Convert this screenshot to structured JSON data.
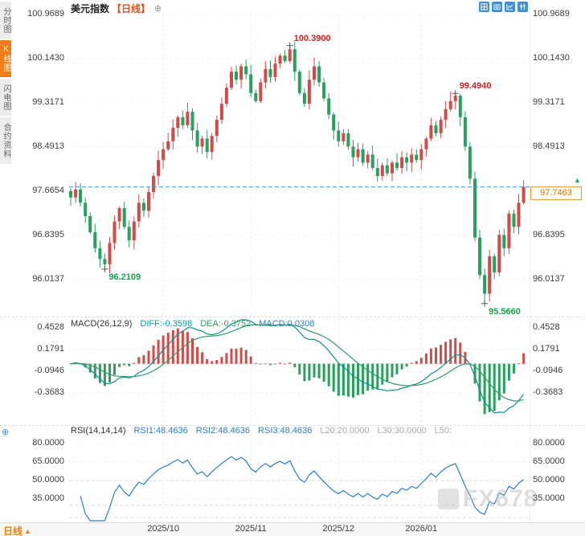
{
  "colors": {
    "up": "#d14b4b",
    "down": "#2aa05f",
    "annotation_high": "#cc2222",
    "annotation_low": "#1f9d4f",
    "current_price_line": "#4a90d9",
    "price_box_border": "#e89a3c",
    "macd_diff_line": "#0e8f8f",
    "macd_dea_line": "#2e9e68",
    "rsi_line": "#2b7fc1",
    "accent": "#f07d17"
  },
  "sidebar": {
    "items": [
      {
        "label": "分时图",
        "active": false
      },
      {
        "label": "K线图",
        "active": true
      },
      {
        "label": "闪电图",
        "active": false
      },
      {
        "label": "合约资料",
        "active": false
      }
    ]
  },
  "header": {
    "title": "美元指数",
    "period_tag": "【日线】",
    "add_indicator_icon": "⊕"
  },
  "toolbar": {
    "icons": [
      "layout-grid",
      "screenshot",
      "line-chart",
      "candlestick"
    ]
  },
  "main_chart": {
    "y_axis_labels": [
      "100.9689",
      "100.1430",
      "99.3171",
      "98.4913",
      "97.6654",
      "96.8395",
      "96.0137"
    ],
    "current_price_label": "97.7463",
    "price_up_arrow": "▲"
  },
  "macd": {
    "title": "MACD(26,12,9)",
    "diff": "DIFF:-0.3598",
    "dea": "DEA:-0.3752",
    "macd": "MACD:0.0308",
    "y_labels": [
      "0.4528",
      "0.1791",
      "-0.0946",
      "-0.3683"
    ]
  },
  "rsi": {
    "title": "RSI(14,14,14)",
    "rsi1": "RSI1:48.4636",
    "rsi2": "RSI2:48.4636",
    "rsi3": "RSI3:48.4636",
    "l20": "L20:20.0000",
    "l30": "L30:30.0000",
    "l50": "L50:",
    "y_labels": [
      "80.0000",
      "65.0000",
      "50.0000",
      "35.0000"
    ]
  },
  "bottom_bar": {
    "period": "日线",
    "arrow": "▲"
  },
  "watermark": "FX678",
  "panel_icon": "⊕",
  "chart_data": {
    "type": "candlestick",
    "symbol": "美元指数",
    "period": "日线",
    "y_ticks": [
      100.9689,
      100.143,
      99.3171,
      98.4913,
      97.6654,
      96.8395,
      96.0137
    ],
    "x_labels": [
      {
        "label": "2025/10",
        "index": 19
      },
      {
        "label": "2025/11",
        "index": 37
      },
      {
        "label": "2025/12",
        "index": 55
      },
      {
        "label": "2026/01",
        "index": 72
      }
    ],
    "closes": [
      97.55,
      97.7,
      97.45,
      97.2,
      96.9,
      96.6,
      96.4,
      96.3,
      96.7,
      97.1,
      97.35,
      97.0,
      96.75,
      97.1,
      97.45,
      97.3,
      97.65,
      97.95,
      98.25,
      98.45,
      98.6,
      98.85,
      99.05,
      98.9,
      99.15,
      98.8,
      98.5,
      98.65,
      98.4,
      98.7,
      99.0,
      99.3,
      99.6,
      99.9,
      99.75,
      100.0,
      99.85,
      99.5,
      99.35,
      99.7,
      99.95,
      99.8,
      100.05,
      100.2,
      100.1,
      100.32,
      99.9,
      99.5,
      99.3,
      99.75,
      100.0,
      99.7,
      99.4,
      99.1,
      98.8,
      98.6,
      98.75,
      98.5,
      98.3,
      98.45,
      98.2,
      98.35,
      98.1,
      97.95,
      98.15,
      98.0,
      98.2,
      98.1,
      98.3,
      98.2,
      98.35,
      98.25,
      98.45,
      98.65,
      98.9,
      98.75,
      99.0,
      99.2,
      99.35,
      99.45,
      99.05,
      98.5,
      97.9,
      96.8,
      96.1,
      95.75,
      96.45,
      96.15,
      96.85,
      96.6,
      97.25,
      97.0,
      97.45,
      97.7463
    ],
    "current_price": 97.7463,
    "key_points": [
      {
        "index": 7,
        "type": "low",
        "value": 96.2109
      },
      {
        "index": 45,
        "type": "high",
        "value": 100.39
      },
      {
        "index": 79,
        "type": "high",
        "value": 99.494
      },
      {
        "index": 85,
        "type": "low",
        "value": 95.566
      }
    ],
    "indicators": {
      "macd": {
        "params": [
          26,
          12,
          9
        ],
        "diff": -0.3598,
        "dea": -0.3752,
        "macd": 0.0308,
        "y_ticks": [
          0.4528,
          0.1791,
          -0.0946,
          -0.3683
        ]
      },
      "rsi": {
        "params": [
          14,
          14,
          14
        ],
        "rsi1": 48.4636,
        "rsi2": 48.4636,
        "rsi3": 48.4636,
        "l20": 20.0,
        "l30": 30.0,
        "y_ticks": [
          80,
          65,
          50,
          35
        ]
      }
    }
  }
}
